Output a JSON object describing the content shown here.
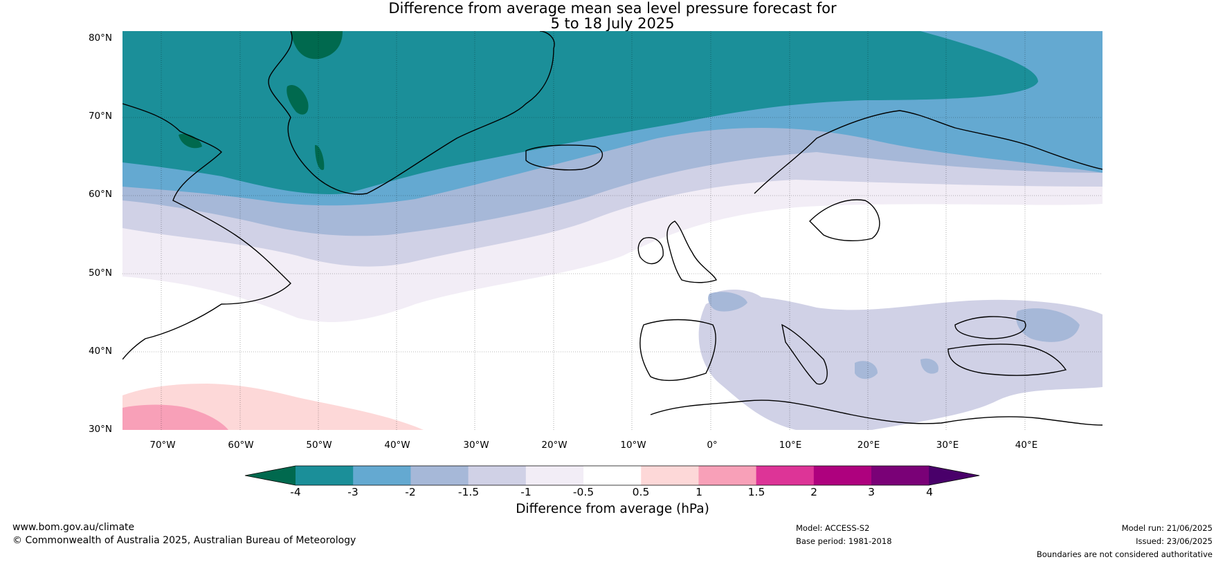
{
  "title": {
    "line1": "Difference from average mean sea level pressure forecast for",
    "line2": "5 to 18 July 2025"
  },
  "map": {
    "lat_labels": [
      "80°N",
      "70°N",
      "60°N",
      "50°N",
      "40°N",
      "30°N"
    ],
    "lon_labels": [
      "70°W",
      "60°W",
      "50°W",
      "40°W",
      "30°W",
      "20°W",
      "10°W",
      "0°",
      "10°E",
      "20°E",
      "30°E",
      "40°E"
    ],
    "extent": {
      "lon": [
        -75,
        50
      ],
      "lat": [
        30,
        81
      ]
    },
    "regions": [
      {
        "name": "Greenland",
        "anomaly_band": "-4 to -3"
      },
      {
        "name": "Iceland",
        "anomaly_band": "-4 to -3"
      },
      {
        "name": "Scandinavia",
        "anomaly_band": "-2 to -0.5"
      },
      {
        "name": "Western Europe",
        "anomaly_band": "-0.5 to 0.5"
      },
      {
        "name": "Mediterranean",
        "anomaly_band": "-1.5 to -1"
      },
      {
        "name": "Subtropical North Atlantic",
        "anomaly_band": "0.5 to 1.5"
      }
    ]
  },
  "colorbar": {
    "labels": [
      "-4",
      "-3",
      "-2",
      "-1.5",
      "-1",
      "-0.5",
      "0.5",
      "1",
      "1.5",
      "2",
      "3",
      "4"
    ],
    "colors": [
      "#00694e",
      "#1b8f99",
      "#64a9d1",
      "#a6b8d8",
      "#d0d1e6",
      "#f2edf6",
      "#ffffff",
      "#fdd8d8",
      "#f8a0b8",
      "#dd3497",
      "#ae017e",
      "#7a0177",
      "#49006a"
    ],
    "title": "Difference from average (hPa)"
  },
  "footer": {
    "website": "www.bom.gov.au/climate",
    "copyright": "© Commonwealth of Australia 2025, Australian Bureau of Meteorology",
    "model": "Model: ACCESS-S2",
    "base_period": "Base period: 1981-2018",
    "model_run": "Model run: 21/06/2025",
    "issued": "Issued: 23/06/2025",
    "disclaimer": "Boundaries are not considered authoritative"
  }
}
